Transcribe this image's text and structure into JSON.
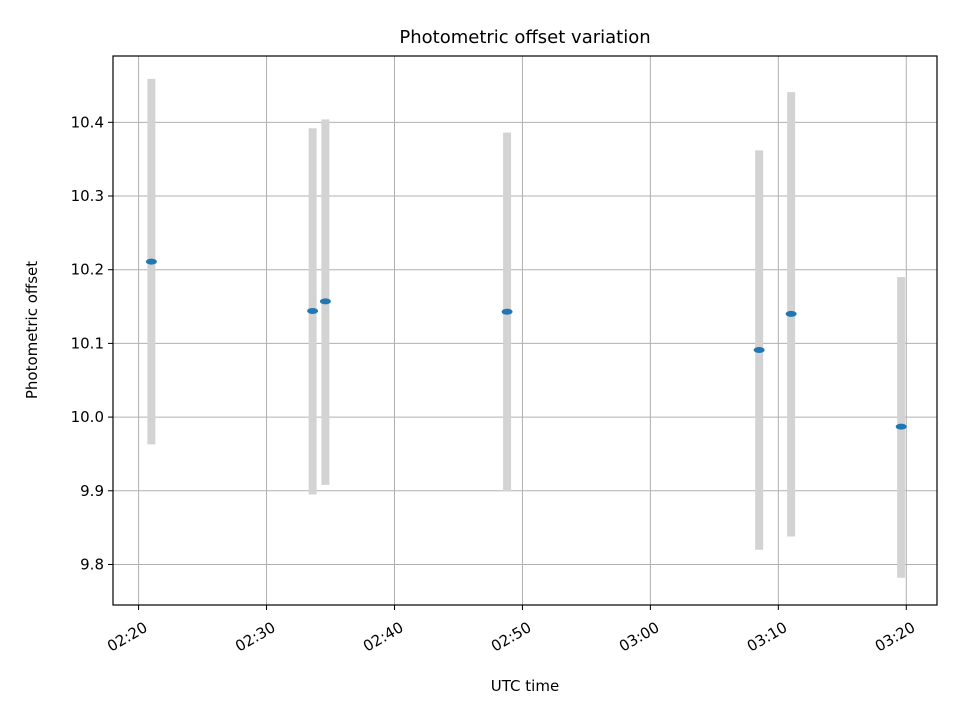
{
  "chart_data": {
    "type": "scatter",
    "title": "Photometric offset variation",
    "xlabel": "UTC time",
    "ylabel": "Photometric offset",
    "x_unit": "time of day (UTC)",
    "x_tick_labels": [
      "02:20",
      "02:30",
      "02:40",
      "02:50",
      "03:00",
      "03:10",
      "03:20"
    ],
    "y_tick_labels": [
      "9.8",
      "9.9",
      "10.0",
      "10.1",
      "10.2",
      "10.3",
      "10.4"
    ],
    "xlim": [
      "02:18:00",
      "03:22:24"
    ],
    "ylim": [
      9.745,
      10.49
    ],
    "grid": true,
    "series": [
      {
        "marker_color": "#1f77b4",
        "errorbar_color": "#d3d3d3",
        "points": [
          {
            "x": "02:21:00",
            "y": 10.211,
            "ymin": 9.963,
            "ymax": 10.459
          },
          {
            "x": "02:33:36",
            "y": 10.144,
            "ymin": 9.895,
            "ymax": 10.392
          },
          {
            "x": "02:34:36",
            "y": 10.157,
            "ymin": 9.908,
            "ymax": 10.404
          },
          {
            "x": "02:48:48",
            "y": 10.143,
            "ymin": 9.899,
            "ymax": 10.386
          },
          {
            "x": "03:08:30",
            "y": 10.091,
            "ymin": 9.82,
            "ymax": 10.362
          },
          {
            "x": "03:11:00",
            "y": 10.14,
            "ymin": 9.838,
            "ymax": 10.441
          },
          {
            "x": "03:19:36",
            "y": 9.987,
            "ymin": 9.782,
            "ymax": 10.19
          }
        ]
      }
    ]
  }
}
